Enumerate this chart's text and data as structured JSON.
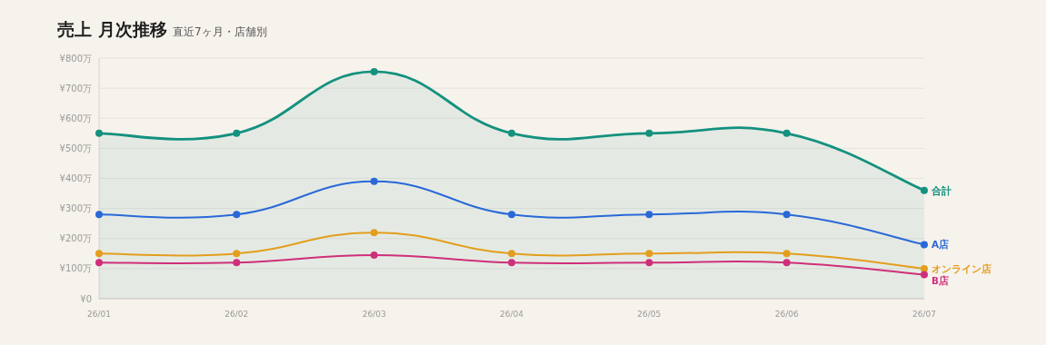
{
  "chart_data": {
    "type": "line",
    "title": "売上 月次推移",
    "subtitle": "直近7ヶ月・店舗別",
    "categories": [
      "26/01",
      "26/02",
      "26/03",
      "26/04",
      "26/05",
      "26/06",
      "26/07"
    ],
    "series": [
      {
        "name": "合計",
        "type": "area",
        "color": "#14917f",
        "values": [
          550,
          550,
          755,
          550,
          550,
          550,
          360
        ]
      },
      {
        "name": "A店",
        "color": "#2a68d8",
        "values": [
          280,
          280,
          390,
          280,
          280,
          280,
          180
        ]
      },
      {
        "name": "オンライン店",
        "color": "#e39e1e",
        "values": [
          150,
          150,
          220,
          150,
          150,
          150,
          100
        ]
      },
      {
        "name": "B店",
        "color": "#cf2f7a",
        "values": [
          120,
          120,
          145,
          120,
          120,
          120,
          80
        ]
      }
    ],
    "ylim": [
      0,
      800
    ],
    "yticks": [
      {
        "value": 0,
        "label": "¥0"
      },
      {
        "value": 100,
        "label": "¥100万"
      },
      {
        "value": 200,
        "label": "¥200万"
      },
      {
        "value": 300,
        "label": "¥300万"
      },
      {
        "value": 400,
        "label": "¥400万"
      },
      {
        "value": 500,
        "label": "¥500万"
      },
      {
        "value": 600,
        "label": "¥600万"
      },
      {
        "value": 700,
        "label": "¥700万"
      },
      {
        "value": 800,
        "label": "¥800万"
      }
    ],
    "grid": "y",
    "legend": false,
    "marker": "circle",
    "line_style": "solid"
  }
}
